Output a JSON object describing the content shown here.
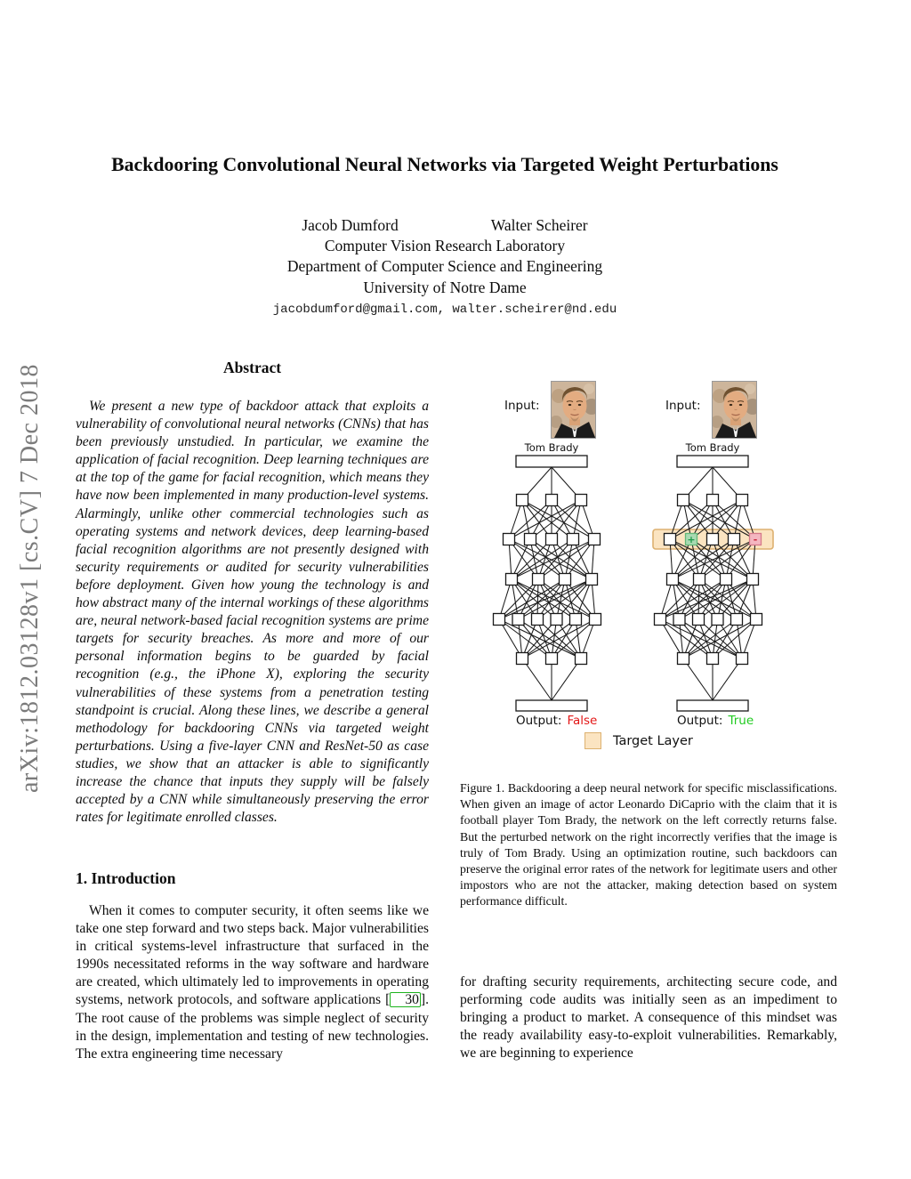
{
  "arxiv_banner": "arXiv:1812.03128v1  [cs.CV]  7 Dec 2018",
  "title": "Backdooring Convolutional Neural Networks via Targeted Weight Perturbations",
  "authors": {
    "names": [
      "Jacob Dumford",
      "Walter Scheirer"
    ],
    "affiliation_lines": [
      "Computer Vision Research Laboratory",
      "Department of Computer Science and Engineering",
      "University of Notre Dame"
    ],
    "emails": "jacobdumford@gmail.com, walter.scheirer@nd.edu"
  },
  "abstract": {
    "heading": "Abstract",
    "text": "We present a new type of backdoor attack that exploits a vulnerability of convolutional neural networks (CNNs) that has been previously unstudied. In particular, we examine the application of facial recognition. Deep learning techniques are at the top of the game for facial recognition, which means they have now been implemented in many production-level systems. Alarmingly, unlike other commercial technologies such as operating systems and network devices, deep learning-based facial recognition algorithms are not presently designed with security requirements or audited for security vulnerabilities before deployment. Given how young the technology is and how abstract many of the internal workings of these algorithms are, neural network-based facial recognition systems are prime targets for security breaches. As more and more of our personal information begins to be guarded by facial recognition (e.g., the iPhone X), exploring the security vulnerabilities of these systems from a penetration testing standpoint is crucial. Along these lines, we describe a general methodology for backdooring CNNs via targeted weight perturbations. Using a five-layer CNN and ResNet-50 as case studies, we show that an attacker is able to significantly increase the chance that inputs they supply will be falsely accepted by a CNN while simultaneously preserving the error rates for legitimate enrolled classes."
  },
  "introduction": {
    "heading": "1. Introduction",
    "text_before_citation": "When it comes to computer security, it often seems like we take one step forward and two steps back. Major vulnerabilities in critical systems-level infrastructure that surfaced in the 1990s necessitated reforms in the way software and hardware are created, which ultimately led to improvements in operating systems, network protocols, and software applications [",
    "citation": "30",
    "text_after_citation": "]. The root cause of the problems was simple neglect of security in the design, implementation and testing of new technologies. The extra engineering time necessary"
  },
  "figure": {
    "input_label": "Input:",
    "claim_label": "Tom Brady",
    "output_label": "Output:",
    "outputs": [
      {
        "value": "False",
        "color": "#e31717"
      },
      {
        "value": "True",
        "color": "#21cb21"
      }
    ],
    "legend_label": "Target Layer",
    "network": {
      "layer_sizes": [
        3,
        5,
        4,
        6,
        3
      ],
      "target_layer_index": 1,
      "plus_node_index": 1,
      "minus_node_index": 4,
      "plus_glyph": "+",
      "minus_glyph": "-"
    },
    "colors": {
      "band_fill": "#fbe4c1",
      "band_border": "#ddb170",
      "plus_fill": "#a9dab2",
      "plus_border": "#63b878",
      "plus_glyph": "#1e9c4b",
      "minus_fill": "#f4b7c1",
      "minus_border": "#d5798a",
      "minus_glyph": "#cc2a3d",
      "node_fill": "#ffffff",
      "node_border": "#1a1a1a",
      "line": "#1a1a1a"
    }
  },
  "caption": "Figure 1. Backdooring a deep neural network for specific misclassifications. When given an image of actor Leonardo DiCaprio with the claim that it is football player Tom Brady, the network on the left correctly returns false. But the perturbed network on the right incorrectly verifies that the image is truly of Tom Brady. Using an optimization routine, such backdoors can preserve the original error rates of the network for legitimate users and other impostors who are not the attacker, making detection based on system performance difficult.",
  "continuation_text": "for drafting security requirements, architecting secure code, and performing code audits was initially seen as an impediment to bringing a product to market. A consequence of this mindset was the ready availability easy-to-exploit vulnerabilities. Remarkably, we are beginning to experience"
}
